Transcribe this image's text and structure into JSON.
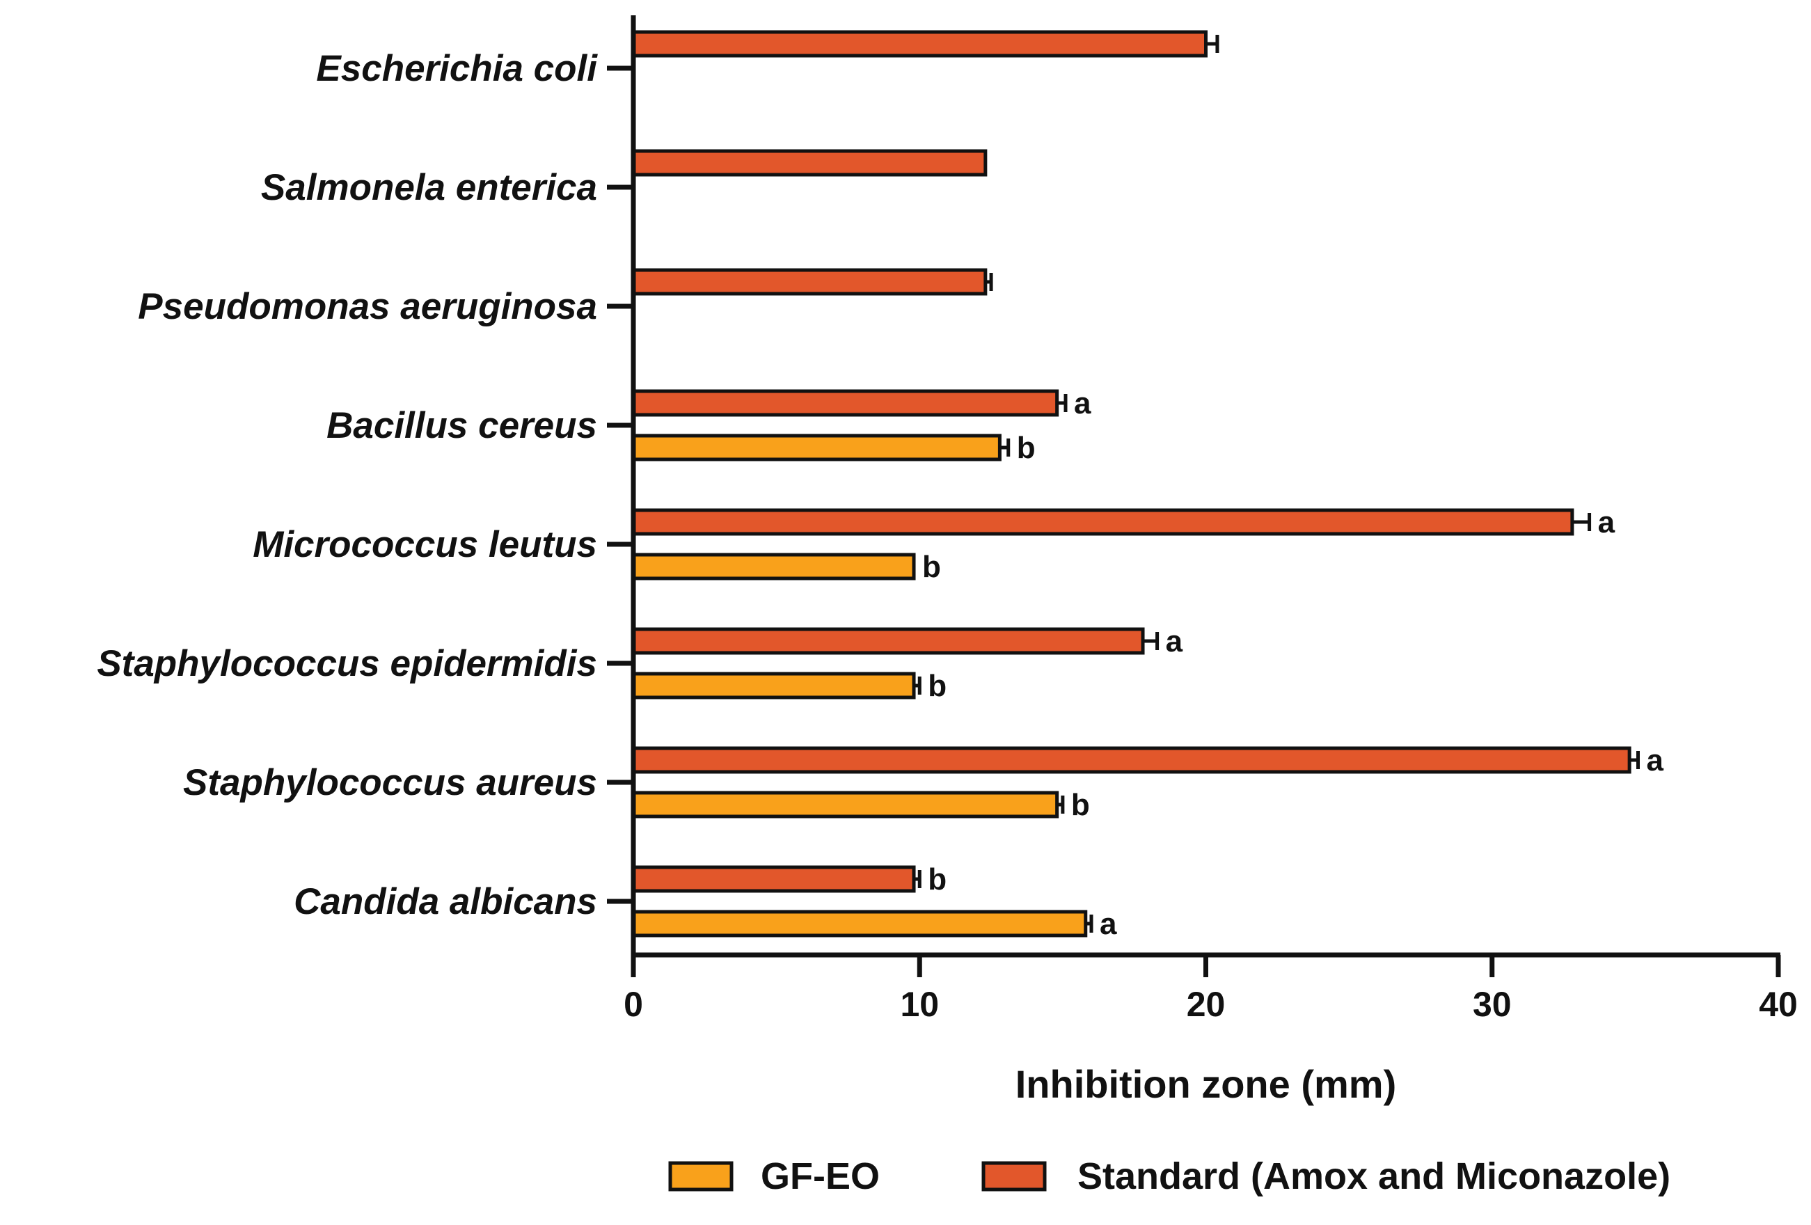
{
  "chart_data": {
    "type": "bar",
    "orientation": "horizontal",
    "title": "",
    "xlabel": "Inhibition zone (mm)",
    "ylabel": "",
    "xlim": [
      0,
      40
    ],
    "xticks": [
      0,
      10,
      20,
      30,
      40
    ],
    "grid": false,
    "legend_position": "bottom",
    "categories": [
      "Escherichia coli",
      "Salmonela enterica",
      "Pseudomonas aeruginosa",
      "Bacillus cereus",
      "Micrococcus leutus",
      "Staphylococcus epidermidis",
      "Staphylococcus aureus",
      "Candida albicans"
    ],
    "series": [
      {
        "name": "Standard (Amox and Miconazole)",
        "color": "#E2572B",
        "values": [
          20,
          12.3,
          12.3,
          14.8,
          32.8,
          17.8,
          34.8,
          9.8
        ],
        "errors": [
          0.4,
          0.0,
          0.2,
          0.3,
          0.6,
          0.5,
          0.3,
          0.2
        ],
        "labels": [
          "",
          "",
          "",
          "a",
          "a",
          "a",
          "a",
          "b"
        ]
      },
      {
        "name": "GF-EO",
        "color": "#F9A11B",
        "values": [
          null,
          null,
          null,
          12.8,
          9.8,
          9.8,
          14.8,
          15.8
        ],
        "errors": [
          null,
          null,
          null,
          0.3,
          0.0,
          0.2,
          0.2,
          0.2
        ],
        "labels": [
          "",
          "",
          "",
          "b",
          "b",
          "b",
          "b",
          "a"
        ]
      }
    ]
  }
}
